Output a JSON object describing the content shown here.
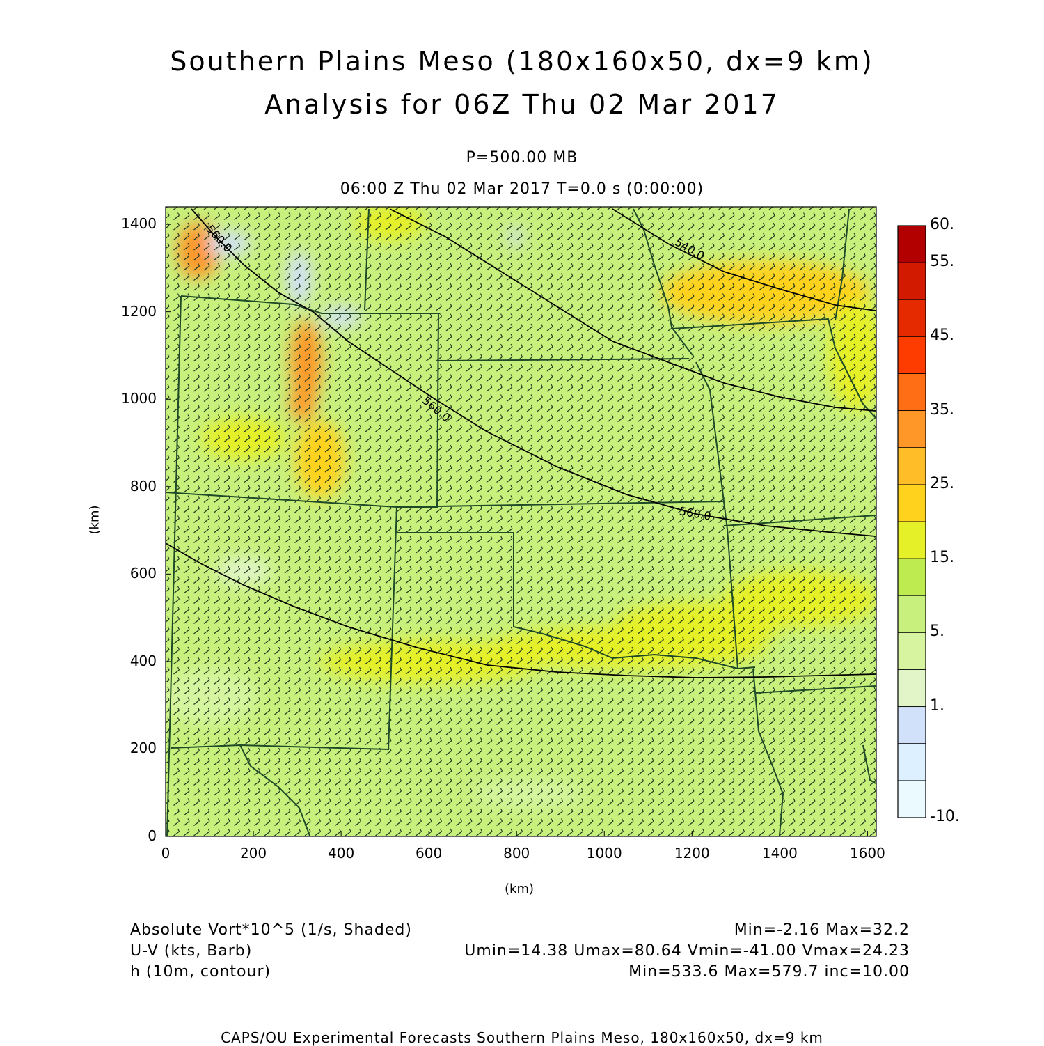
{
  "header": {
    "title_line1": "Southern Plains Meso (180x160x50, dx=9 km)",
    "title_line2": "Analysis for 06Z Thu 02 Mar 2017",
    "level": "P=500.00 MB",
    "time_line": "06:00 Z Thu 02 Mar 2017    T=0.0 s (0:00:00)"
  },
  "axes": {
    "x_title": "(km)",
    "y_title": "(km)",
    "x_ticks": [
      "0",
      "200",
      "400",
      "600",
      "800",
      "1000",
      "1200",
      "1400",
      "1600"
    ],
    "y_ticks": [
      "0",
      "200",
      "400",
      "600",
      "800",
      "1000",
      "1200",
      "1400"
    ],
    "x_range": [
      0,
      1620
    ],
    "y_range": [
      0,
      1440
    ]
  },
  "colorbar": {
    "labels": [
      "60.",
      "55.",
      "45.",
      "35.",
      "25.",
      "15.",
      "5.",
      "1.",
      "-10."
    ],
    "colors": [
      "#b20000",
      "#d21a00",
      "#e62a00",
      "#ff3c00",
      "#ff6e14",
      "#ff9628",
      "#ffbe28",
      "#ffd21e",
      "#e6f028",
      "#beeb50",
      "#c8f07d",
      "#d7f5a0",
      "#e1f5c8",
      "#d2e1fa",
      "#dcf0ff",
      "#ebfaff"
    ]
  },
  "contours": [
    {
      "label": "560.0"
    },
    {
      "label": "560.0"
    },
    {
      "label": "560.0"
    },
    {
      "label": "540.0"
    }
  ],
  "field_info": {
    "vort_label": "Absolute Vort*10^5 (1/s, Shaded)",
    "vort_stats": "Min=-2.16 Max=32.2",
    "wind_label": "U-V (kts, Barb)",
    "wind_stats": "Umin=14.38 Umax=80.64 Vmin=-41.00 Vmax=24.23",
    "height_label": "h (10m, contour)",
    "height_stats": "Min=533.6 Max=579.7 inc=10.00"
  },
  "footer": "CAPS/OU Experimental Forecasts  Southern Plains Meso, 180x160x50, dx=9 km",
  "colors": {
    "background_field": "#c8f07d",
    "border_lines": "#1e4a28",
    "barbs": "#203a20"
  }
}
